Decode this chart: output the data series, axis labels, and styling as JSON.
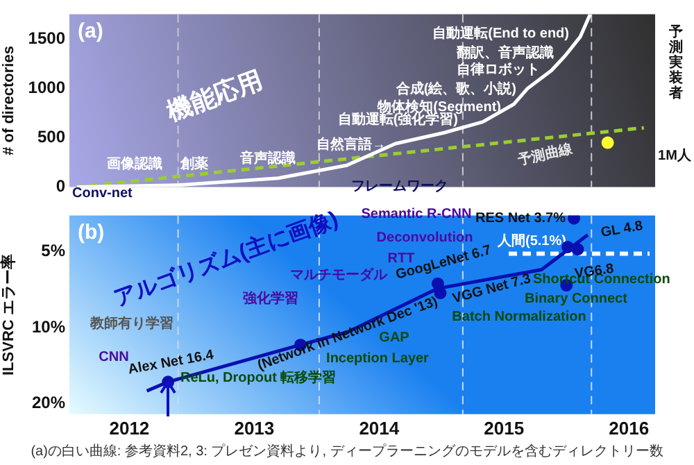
{
  "chart_data": [
    {
      "type": "line",
      "title": "(a)",
      "ylabel": "# of directories",
      "xlim": [
        2011.52,
        2016.21
      ],
      "xticks": [
        2012,
        2013,
        2014,
        2015,
        2016
      ],
      "ylim": [
        0,
        1750
      ],
      "yticks": [
        0,
        500,
        1000,
        1500
      ],
      "tick_labels": "y",
      "ref_lines": [
        {
          "axis": "x",
          "value": 2012.39,
          "color": "#c8c8d0",
          "line_style": "dashed"
        },
        {
          "axis": "x",
          "value": 2013.52,
          "color": "#c8c8d0",
          "line_style": "dashed"
        },
        {
          "axis": "x",
          "value": 2014.67,
          "color": "#c8c8d0",
          "line_style": "dashed"
        },
        {
          "axis": "x",
          "value": 2015.7,
          "color": "#c8c8d0",
          "line_style": "dashed"
        }
      ],
      "series": [
        {
          "color": "#ffffff",
          "marker": "none",
          "x": [
            2011.58,
            2012.39,
            2013.19,
            2013.74,
            2014.13,
            2014.52,
            2014.83,
            2015.08,
            2015.19,
            2015.38,
            2015.49,
            2015.61,
            2015.69
          ],
          "values": [
            0,
            20,
            90,
            220,
            440,
            550,
            660,
            840,
            1000,
            1180,
            1330,
            1520,
            1750
          ]
        },
        {
          "color": "#9acd32",
          "marker": "none",
          "line_style": "dashed",
          "x": [
            2011.57,
            2016.12
          ],
          "values": [
            0,
            600
          ]
        },
        {
          "type": "scatter",
          "color": "#ffff33",
          "marker": "circle",
          "x": [
            2015.83
          ],
          "values": [
            450
          ]
        }
      ],
      "annotations": [
        "機能応用",
        "Conv-net",
        "画像認識",
        "創薬",
        "音声認識",
        "自然言語→",
        "自動運転(強化学習)",
        "物体検知(Segment)",
        "合成(絵、歌、小説)",
        "自律ロボット",
        "翻訳、音声認識",
        "自動運転(End to end)",
        "フレームワーク",
        {
          "text": "予測曲線",
          "x": 2015.33,
          "y": 496
        },
        "予測実装者",
        "1M人"
      ]
    },
    {
      "type": "scatter",
      "title": "(b)",
      "ylabel": "ILSVRC エラー率",
      "log": true,
      "xlim": [
        2011.52,
        2016.21
      ],
      "xticks": [
        2012,
        2013,
        2014,
        2015,
        2016
      ],
      "ylim": [
        22,
        3.6
      ],
      "yticks": [
        {
          "value": 5,
          "label": "5%"
        },
        {
          "value": 10,
          "label": "10%"
        },
        {
          "value": 20,
          "label": "20%"
        }
      ],
      "ref_lines": [
        {
          "axis": "x",
          "value": 2012.39,
          "color": "#c8d8f0",
          "line_style": "dashed"
        },
        {
          "axis": "x",
          "value": 2013.52,
          "color": "#c8d8f0",
          "line_style": "dashed"
        },
        {
          "axis": "x",
          "value": 2014.67,
          "color": "#c8d8f0",
          "line_style": "dashed"
        },
        {
          "axis": "x",
          "value": 2015.7,
          "color": "#c8d8f0",
          "line_style": "dashed"
        },
        {
          "axis": "y",
          "value": 5.1,
          "label": "人間(5.1%)",
          "color": "#ffffff",
          "line_style": "dashed"
        }
      ],
      "series": [
        {
          "type": "line",
          "color": "#0a10b0",
          "marker": "none",
          "x": [
            2012.14,
            2012.31,
            2013.37,
            2013.75,
            2014.47,
            2015.3,
            2015.67
          ],
          "values": [
            17.8,
            16.4,
            11.7,
            10.4,
            7.0,
            5.9,
            4.3
          ]
        },
        {
          "color": "#0a10b0",
          "marker": "circle",
          "x": [
            2012.31,
            2013.37,
            2014.47,
            2014.49,
            2015.56,
            2015.51,
            2015.59,
            2015.5
          ],
          "values": [
            16.4,
            11.7,
            6.7,
            7.3,
            3.7,
            4.8,
            4.9,
            6.8
          ]
        }
      ],
      "annotations": [
        "アルゴリズム(主に画像)",
        "教師有り学習",
        "CNN",
        "ReLu, Dropout",
        "強化学習",
        "マルチモーダル",
        "転移学習",
        "Inception Layer",
        "GAP",
        "RTT",
        "Deconvolution",
        "Semantic R-CNN",
        "Batch Normalization",
        "Shortcut Connection",
        "Binary Connect",
        {
          "text": "Alex Net 16.4",
          "x": 2012.31,
          "y": 16.4
        },
        {
          "text": "(Network in Network Dec '13)",
          "x": 2013.37,
          "y": 11.7
        },
        {
          "text": "GoogLeNet 6.7",
          "x": 2014.47,
          "y": 6.7
        },
        {
          "text": "VGG Net 7.3",
          "x": 2014.49,
          "y": 7.3
        },
        {
          "text": "RES Net 3.7%",
          "x": 2015.56,
          "y": 3.7
        },
        {
          "text": "GL 4.8",
          "x": 2015.51,
          "y": 4.8
        },
        {
          "text": "VG6.8",
          "x": 2015.5,
          "y": 6.8
        },
        "(a)の白い曲線: 参考資料2, 3: プレゼン資料より, ディープラーニングのモデルを含むディレクトリー数"
      ]
    }
  ]
}
